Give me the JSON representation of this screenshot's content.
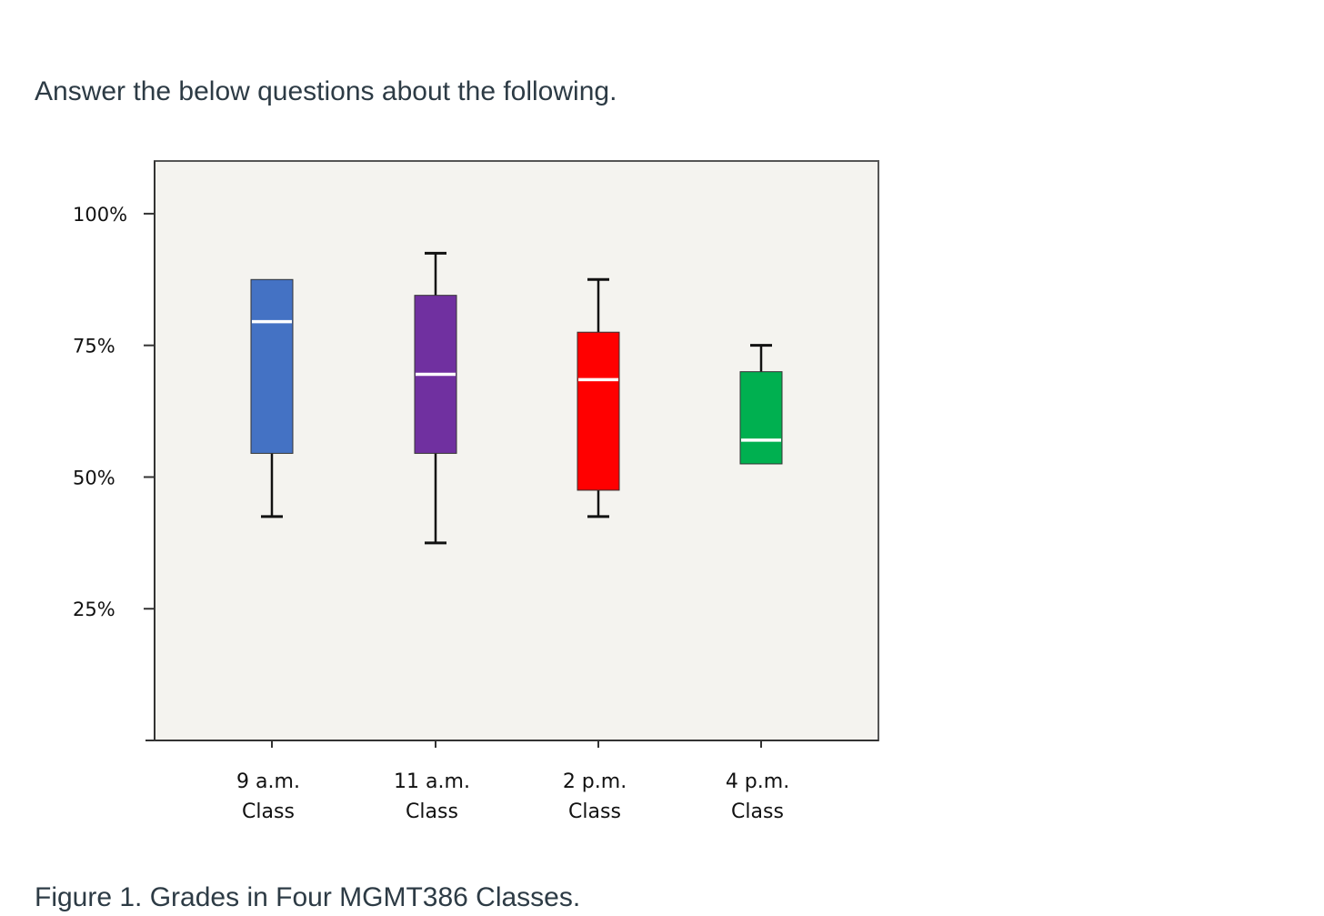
{
  "page": {
    "prompt": "Answer the below questions about the following.",
    "caption": "Figure 1. Grades in Four MGMT386 Classes."
  },
  "chart_data": {
    "type": "box",
    "title": "",
    "xlabel": "",
    "ylabel": "",
    "ylim": [
      0,
      110
    ],
    "yticks": [
      25,
      50,
      75,
      100
    ],
    "ytick_labels": [
      "25%",
      "50%",
      "75%",
      "100%"
    ],
    "grid": false,
    "legend": "none",
    "categories": [
      {
        "line1": "9 a.m.",
        "line2": "Class"
      },
      {
        "line1": "11 a.m.",
        "line2": "Class"
      },
      {
        "line1": "2 p.m.",
        "line2": "Class"
      },
      {
        "line1": "4 p.m.",
        "line2": "Class"
      }
    ],
    "boxes": [
      {
        "whisker_low": 42.5,
        "q1": 54.5,
        "median": 79.5,
        "q3": 87.5,
        "whisker_high": 87.5,
        "color": "#4472c4"
      },
      {
        "whisker_low": 37.5,
        "q1": 54.5,
        "median": 69.5,
        "q3": 84.5,
        "whisker_high": 92.5,
        "color": "#7030a0"
      },
      {
        "whisker_low": 42.5,
        "q1": 47.5,
        "median": 68.5,
        "q3": 77.5,
        "whisker_high": 87.5,
        "color": "#ff0000"
      },
      {
        "whisker_low": 52.5,
        "q1": 52.5,
        "median": 57.0,
        "q3": 70.0,
        "whisker_high": 75.0,
        "color": "#00b050"
      }
    ],
    "colors": {
      "plot_background": "#f4f3ef",
      "median_line": "#ffffff",
      "whisker": "#111111"
    }
  }
}
